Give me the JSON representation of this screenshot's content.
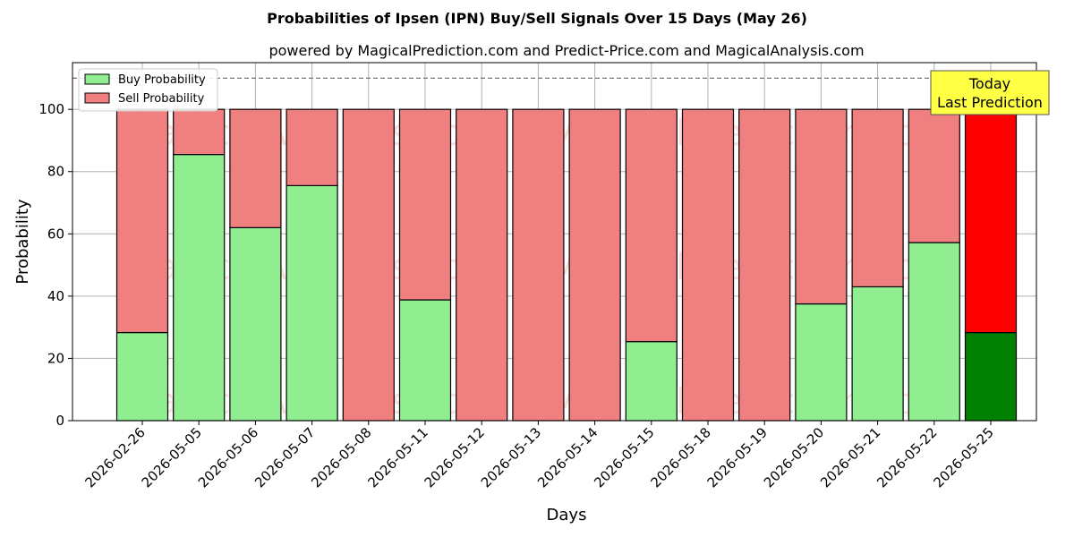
{
  "chart_data": {
    "type": "bar",
    "stacked": true,
    "title": "Probabilities of Ipsen (IPN) Buy/Sell Signals Over 15 Days (May 26)",
    "subtitle": "powered by MagicalPrediction.com and Predict-Price.com and MagicalAnalysis.com",
    "xlabel": "Days",
    "ylabel": "Probability",
    "ylim": [
      0,
      115
    ],
    "yticks": [
      0,
      20,
      40,
      60,
      80,
      100
    ],
    "reference_line": 110,
    "grid": true,
    "legend_position": "top-left",
    "categories": [
      "2026-02-26",
      "2026-05-05",
      "2026-05-06",
      "2026-05-07",
      "2026-05-08",
      "2026-05-11",
      "2026-05-12",
      "2026-05-13",
      "2026-05-14",
      "2026-05-15",
      "2026-05-18",
      "2026-05-19",
      "2026-05-20",
      "2026-05-21",
      "2026-05-22",
      "2026-05-25"
    ],
    "series": [
      {
        "name": "Buy Probability",
        "color": "#90ee90",
        "values": [
          28.3,
          85.5,
          62.0,
          75.5,
          0,
          38.8,
          0,
          0,
          0,
          25.4,
          0,
          0,
          37.5,
          43.0,
          57.2,
          28.3
        ]
      },
      {
        "name": "Sell Probability",
        "color": "#f08080",
        "values": [
          71.7,
          14.5,
          38.0,
          24.5,
          100,
          61.2,
          100,
          100,
          100,
          74.6,
          100,
          100,
          62.5,
          57.0,
          42.8,
          71.7
        ]
      }
    ],
    "highlight": {
      "index": 15,
      "buy_color": "#008000",
      "sell_color": "#ff0000"
    },
    "annotation": {
      "line1": "Today",
      "line2": "Last Prediction",
      "background": "#ffff44"
    },
    "watermarks": [
      "MagicalAnalysis.com",
      "MagicalPrediction.com"
    ]
  }
}
